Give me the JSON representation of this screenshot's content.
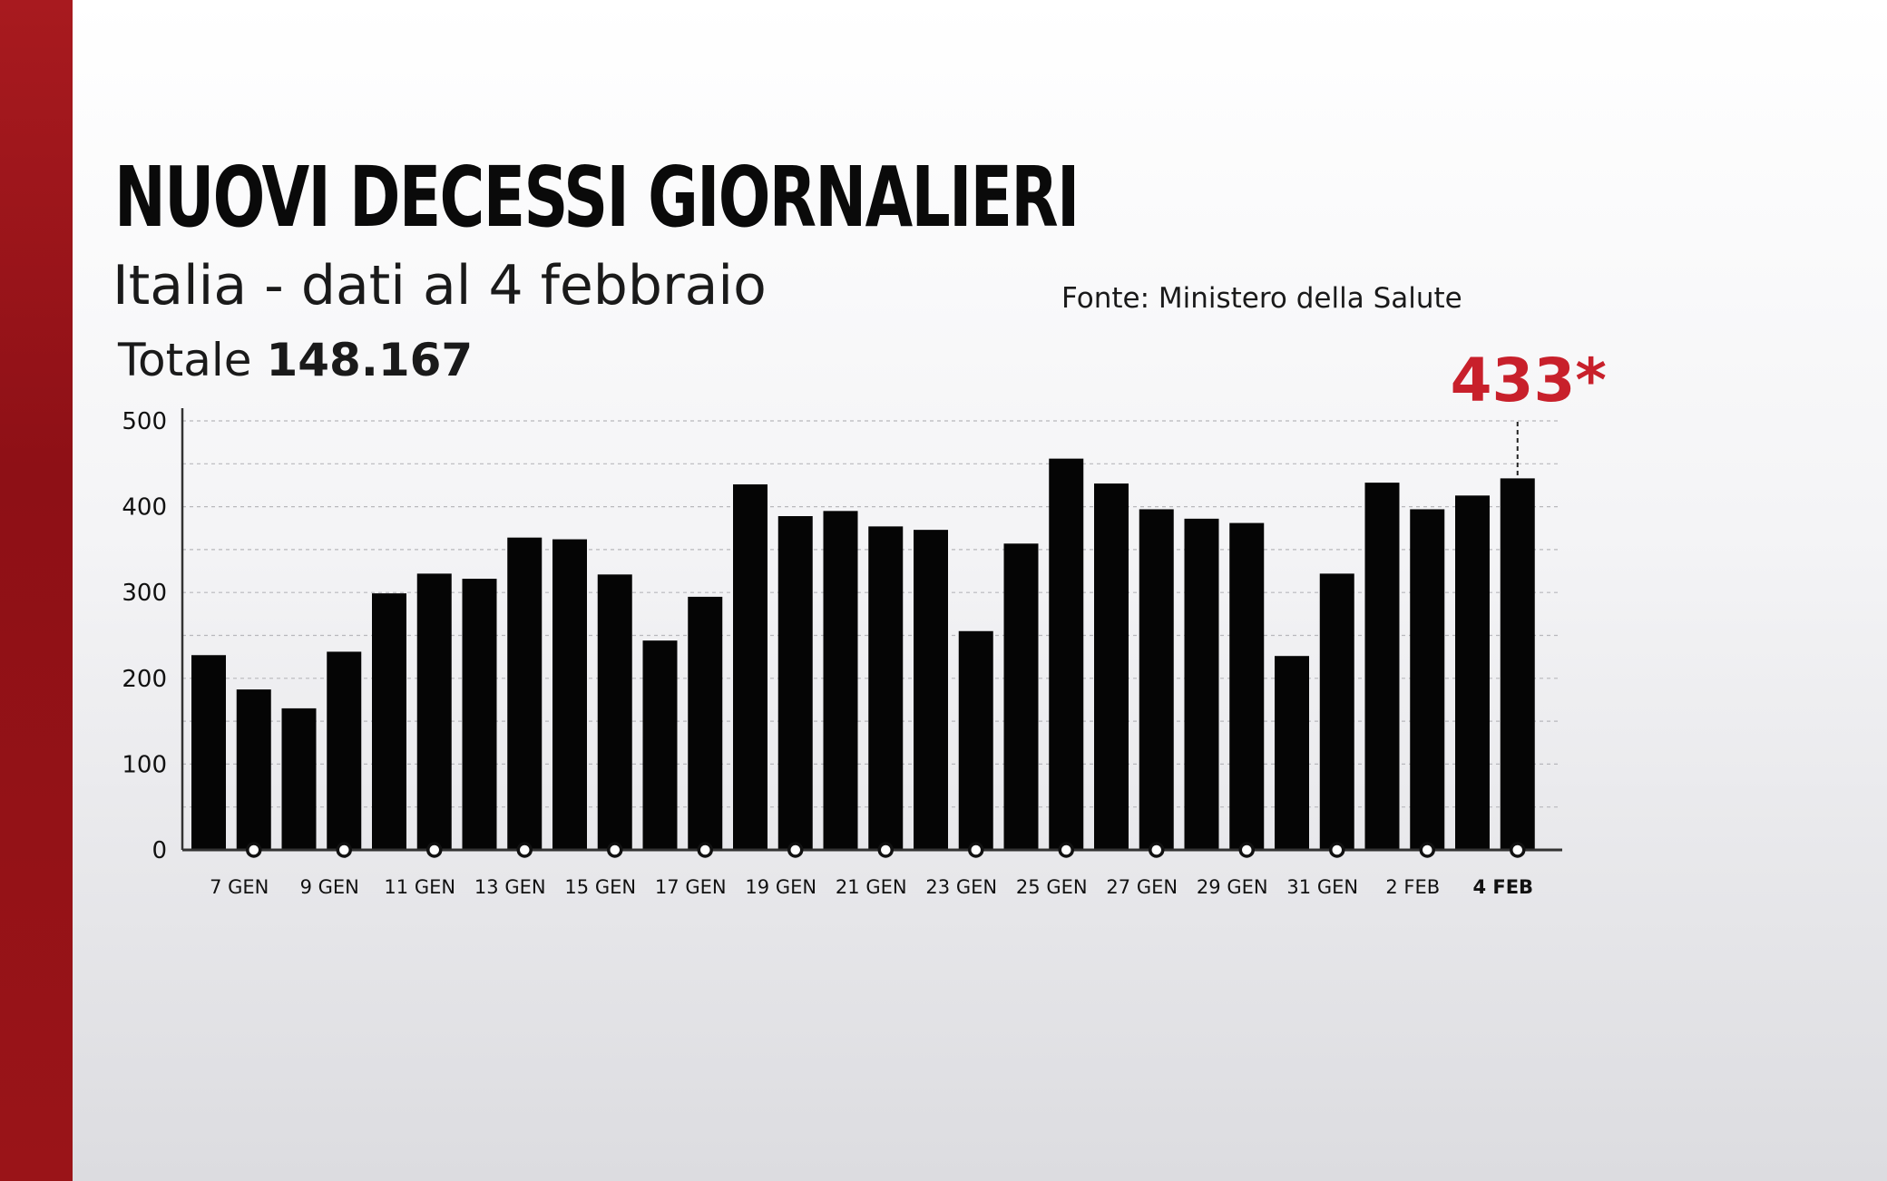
{
  "header": {
    "title": "NUOVI DECESSI GIORNALIERI",
    "subtitle": "Italia - dati al 4 febbraio",
    "total_label": "Totale",
    "total_value": "148.167",
    "source": "Fonte: Ministero della Salute"
  },
  "chart_data": {
    "type": "bar",
    "categories": [
      "6 GEN",
      "7 GEN",
      "8 GEN",
      "9 GEN",
      "10 GEN",
      "11 GEN",
      "12 GEN",
      "13 GEN",
      "14 GEN",
      "15 GEN",
      "16 GEN",
      "17 GEN",
      "18 GEN",
      "19 GEN",
      "20 GEN",
      "21 GEN",
      "22 GEN",
      "23 GEN",
      "24 GEN",
      "25 GEN",
      "26 GEN",
      "27 GEN",
      "28 GEN",
      "29 GEN",
      "30 GEN",
      "31 GEN",
      "1 FEB",
      "2 FEB",
      "3 FEB",
      "4 FEB"
    ],
    "values": [
      227,
      187,
      165,
      231,
      299,
      322,
      316,
      364,
      362,
      321,
      244,
      295,
      426,
      389,
      395,
      377,
      373,
      255,
      357,
      456,
      427,
      397,
      386,
      381,
      226,
      322,
      428,
      397,
      413,
      433
    ],
    "x_tick_labels": [
      "7 GEN",
      "9 GEN",
      "11 GEN",
      "13 GEN",
      "15 GEN",
      "17 GEN",
      "19 GEN",
      "21 GEN",
      "23 GEN",
      "25 GEN",
      "27 GEN",
      "29 GEN",
      "31 GEN",
      "2 FEB",
      "4 FEB"
    ],
    "ylim": [
      0,
      500
    ],
    "y_ticks": [
      0,
      100,
      200,
      300,
      400,
      500
    ],
    "grid": true,
    "highlight": {
      "category": "4 FEB",
      "label": "433*",
      "color": "#c8202b"
    },
    "bar_color": "#050505"
  }
}
